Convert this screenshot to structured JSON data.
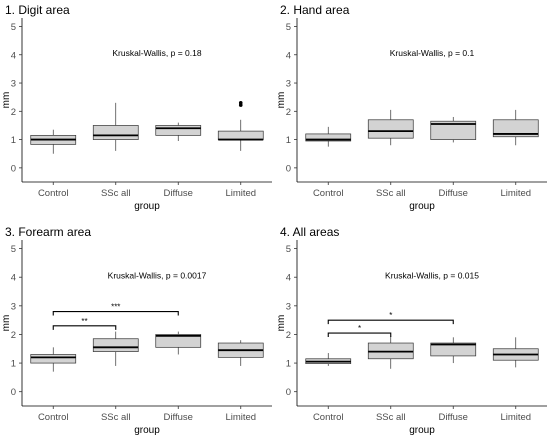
{
  "chart_data": [
    {
      "type": "box",
      "title": "1. Digit area",
      "xlabel": "group",
      "ylabel": "mm",
      "categories": [
        "Control",
        "SSc all",
        "Diffuse",
        "Limited"
      ],
      "ylim": [
        -0.5,
        5.3
      ],
      "yticks": [
        0,
        1,
        2,
        3,
        4,
        5
      ],
      "annotation": "Kruskal-Wallis, p = 0.18",
      "boxes": [
        {
          "min": 0.5,
          "q1": 0.83,
          "median": 1.0,
          "q3": 1.15,
          "max": 1.35,
          "outliers": []
        },
        {
          "min": 0.6,
          "q1": 1.0,
          "median": 1.15,
          "q3": 1.5,
          "max": 2.3,
          "outliers": []
        },
        {
          "min": 0.95,
          "q1": 1.15,
          "median": 1.4,
          "q3": 1.5,
          "max": 1.6,
          "outliers": []
        },
        {
          "min": 0.6,
          "q1": 1.0,
          "median": 1.0,
          "q3": 1.3,
          "max": 1.7,
          "outliers": [
            2.22,
            2.3
          ]
        }
      ],
      "brackets": []
    },
    {
      "type": "box",
      "title": "2. Hand area",
      "xlabel": "group",
      "ylabel": "mm",
      "categories": [
        "Control",
        "SSc all",
        "Diffuse",
        "Limited"
      ],
      "ylim": [
        -0.5,
        5.3
      ],
      "yticks": [
        0,
        1,
        2,
        3,
        4,
        5
      ],
      "annotation": "Kruskal-Wallis, p = 0.1",
      "boxes": [
        {
          "min": 0.75,
          "q1": 0.95,
          "median": 1.0,
          "q3": 1.2,
          "max": 1.45,
          "outliers": []
        },
        {
          "min": 0.8,
          "q1": 1.05,
          "median": 1.3,
          "q3": 1.7,
          "max": 2.05,
          "outliers": []
        },
        {
          "min": 0.9,
          "q1": 1.0,
          "median": 1.55,
          "q3": 1.65,
          "max": 1.8,
          "outliers": []
        },
        {
          "min": 0.8,
          "q1": 1.1,
          "median": 1.2,
          "q3": 1.7,
          "max": 2.05,
          "outliers": []
        }
      ],
      "brackets": []
    },
    {
      "type": "box",
      "title": "3. Forearm area",
      "xlabel": "group",
      "ylabel": "mm",
      "categories": [
        "Control",
        "SSc all",
        "Diffuse",
        "Limited"
      ],
      "ylim": [
        -0.5,
        5.3
      ],
      "yticks": [
        0,
        1,
        2,
        3,
        4,
        5
      ],
      "annotation": "Kruskal-Wallis, p = 0.0017",
      "boxes": [
        {
          "min": 0.7,
          "q1": 1.0,
          "median": 1.2,
          "q3": 1.3,
          "max": 1.55,
          "outliers": []
        },
        {
          "min": 0.9,
          "q1": 1.4,
          "median": 1.55,
          "q3": 1.85,
          "max": 2.1,
          "outliers": []
        },
        {
          "min": 1.3,
          "q1": 1.55,
          "median": 1.95,
          "q3": 2.0,
          "max": 2.1,
          "outliers": []
        },
        {
          "min": 0.9,
          "q1": 1.2,
          "median": 1.45,
          "q3": 1.7,
          "max": 1.8,
          "outliers": []
        }
      ],
      "brackets": [
        {
          "from": "Control",
          "to": "SSc all",
          "y": 2.3,
          "label": "**"
        },
        {
          "from": "Control",
          "to": "Diffuse",
          "y": 2.8,
          "label": "***"
        }
      ]
    },
    {
      "type": "box",
      "title": "4. All areas",
      "xlabel": "group",
      "ylabel": "mm",
      "categories": [
        "Control",
        "SSc all",
        "Diffuse",
        "Limited"
      ],
      "ylim": [
        -0.5,
        5.3
      ],
      "yticks": [
        0,
        1,
        2,
        3,
        4,
        5
      ],
      "annotation": "Kruskal-Wallis, p = 0.015",
      "boxes": [
        {
          "min": 0.9,
          "q1": 0.98,
          "median": 1.05,
          "q3": 1.15,
          "max": 1.35,
          "outliers": []
        },
        {
          "min": 0.8,
          "q1": 1.15,
          "median": 1.4,
          "q3": 1.7,
          "max": 1.95,
          "outliers": []
        },
        {
          "min": 1.0,
          "q1": 1.25,
          "median": 1.65,
          "q3": 1.7,
          "max": 1.9,
          "outliers": []
        },
        {
          "min": 0.85,
          "q1": 1.1,
          "median": 1.3,
          "q3": 1.5,
          "max": 1.9,
          "outliers": []
        }
      ],
      "brackets": [
        {
          "from": "Control",
          "to": "SSc all",
          "y": 2.05,
          "label": "*"
        },
        {
          "from": "Control",
          "to": "Diffuse",
          "y": 2.5,
          "label": "*"
        }
      ]
    }
  ]
}
